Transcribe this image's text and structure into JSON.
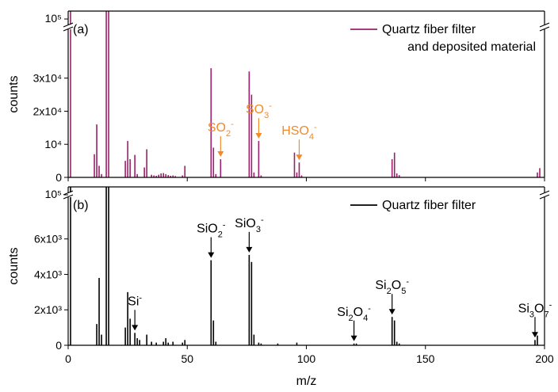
{
  "colors": {
    "panel_a": "#9c1f6b",
    "panel_b": "#000000",
    "annotation_a": "#f28a2a",
    "annotation_b": "#000000",
    "axis": "#000000"
  },
  "chart_data": [
    {
      "type": "bar",
      "panel_label": "(a)",
      "legend": "Quartz fiber filter",
      "legend_line2": "and deposited material",
      "legend_position": "top-right",
      "xlabel": "m/z",
      "ylabel": "counts",
      "xlim": [
        0,
        200
      ],
      "ylim": [
        0,
        45000
      ],
      "axis_break": true,
      "axis_break_top_label": "10⁵",
      "yticks": [
        0,
        10000,
        20000,
        30000
      ],
      "ytick_labels": [
        "0",
        "10⁴",
        "2x10⁴",
        "3x10⁴"
      ],
      "x": [
        1,
        11,
        12,
        13,
        14,
        16,
        17,
        24,
        25,
        26,
        28,
        29,
        32,
        33,
        35,
        36,
        37,
        38,
        39,
        40,
        41,
        42,
        43,
        44,
        45,
        48,
        49,
        60,
        61,
        62,
        64,
        76,
        77,
        78,
        80,
        81,
        95,
        96,
        97,
        98,
        136,
        137,
        138,
        139,
        197,
        198
      ],
      "y": [
        100000,
        7000,
        16000,
        3500,
        1000,
        100000,
        100000,
        5000,
        11000,
        5500,
        6800,
        1000,
        3000,
        8500,
        800,
        600,
        500,
        800,
        1200,
        1300,
        1000,
        700,
        500,
        600,
        400,
        600,
        3500,
        33000,
        9000,
        1000,
        5500,
        32000,
        25000,
        1500,
        11000,
        600,
        7500,
        1500,
        4500,
        600,
        5500,
        7500,
        1200,
        700,
        1500,
        2800
      ],
      "annotations": [
        {
          "text": "SO",
          "sub": "2",
          "sup": "-",
          "x": 64
        },
        {
          "text": "SO",
          "sub": "3",
          "sup": "-",
          "x": 80
        },
        {
          "text": "HSO",
          "sub": "4",
          "sup": "-",
          "x": 97
        }
      ]
    },
    {
      "type": "bar",
      "panel_label": "(b)",
      "legend": "Quartz fiber filter",
      "legend_position": "top-right",
      "xlabel": "m/z",
      "ylabel": "counts",
      "xlim": [
        0,
        200
      ],
      "ylim": [
        0,
        8400
      ],
      "axis_break": true,
      "axis_break_top_label": "10⁵",
      "yticks": [
        0,
        2000,
        4000,
        6000
      ],
      "ytick_labels": [
        "0",
        "2x10³",
        "4x10³",
        "6x10³"
      ],
      "xticks": [
        0,
        50,
        100,
        150,
        200
      ],
      "x": [
        1,
        12,
        13,
        14,
        16,
        17,
        24,
        25,
        26,
        28,
        29,
        30,
        33,
        35,
        37,
        40,
        41,
        42,
        44,
        48,
        49,
        60,
        61,
        62,
        76,
        77,
        78,
        80,
        81,
        88,
        96,
        120,
        121,
        136,
        137,
        138,
        139,
        196,
        197
      ],
      "y": [
        100000,
        1200,
        3800,
        600,
        100000,
        100000,
        1000,
        3000,
        1500,
        700,
        400,
        300,
        600,
        200,
        150,
        200,
        400,
        150,
        200,
        150,
        300,
        4800,
        1400,
        200,
        5100,
        4700,
        600,
        150,
        100,
        100,
        150,
        100,
        100,
        1600,
        1400,
        200,
        100,
        300,
        550
      ],
      "annotations": [
        {
          "text": "Si",
          "sub": "",
          "sup": "-",
          "x": 28
        },
        {
          "text": "SiO",
          "sub": "2",
          "sup": "-",
          "x": 60
        },
        {
          "text": "SiO",
          "sub": "3",
          "sup": "-",
          "x": 76
        },
        {
          "text": "Si",
          "sub": "2",
          "mid": "O",
          "sub2": "4",
          "sup": "-",
          "x": 120
        },
        {
          "text": "Si",
          "sub": "2",
          "mid": "O",
          "sub2": "5",
          "sup": "-",
          "x": 136
        },
        {
          "text": "Si",
          "sub": "3",
          "mid": "O",
          "sub2": "7",
          "sup": "-",
          "x": 196
        }
      ]
    }
  ]
}
